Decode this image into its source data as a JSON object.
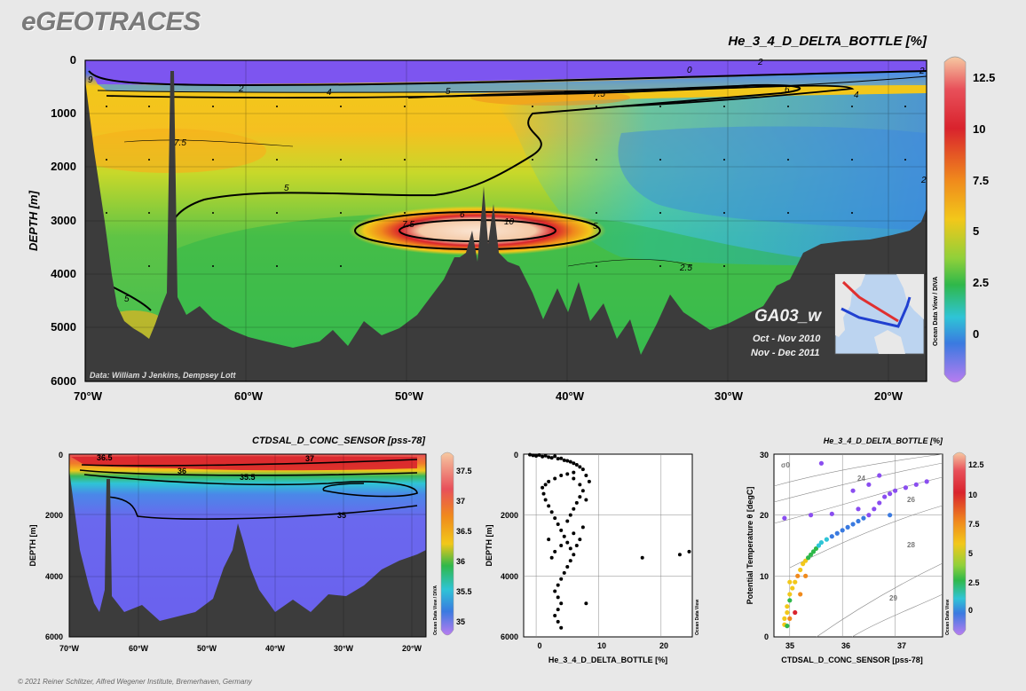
{
  "brand": "eGEOTRACES",
  "copyright": "© 2021 Reiner Schlitzer, Alfred Wegener Institute, Bremerhaven, Germany",
  "main_section": {
    "title": "He_3_4_D_DELTA_BOTTLE [%]",
    "ylabel": "DEPTH [m]",
    "y_ticks": [
      "0",
      "1000",
      "2000",
      "3000",
      "4000",
      "5000",
      "6000"
    ],
    "x_ticks": [
      "70°W",
      "60°W",
      "50°W",
      "40°W",
      "30°W",
      "20°W"
    ],
    "contour_labels": [
      "0",
      "2",
      "2",
      "2",
      "4",
      "4",
      "5",
      "6",
      "7.5",
      "7.5",
      "5",
      "6",
      "10",
      "7.5",
      "5",
      "2.5",
      "5",
      "9",
      "2"
    ],
    "credit": "Data: William J Jenkins, Dempsey Lott",
    "cruise": "GA03_w",
    "period1": "Oct - Nov 2010",
    "period2": "Nov - Dec 2011",
    "odv": "Ocean Data View / DIVA",
    "colorbar_ticks": [
      "12.5",
      "10",
      "7.5",
      "5",
      "2.5",
      "0"
    ],
    "colors": {
      "high": "#f4c9a6",
      "red": "#d9232d",
      "orange": "#f08a1c",
      "yellow": "#f2c81a",
      "green": "#2fb84a",
      "cyan": "#2fc4d6",
      "blue": "#3a7ae0",
      "violet": "#8a4df0",
      "seafloor": "#3c3c3c"
    }
  },
  "salinity_section": {
    "title": "CTDSAL_D_CONC_SENSOR [pss-78]",
    "ylabel": "DEPTH [m]",
    "y_ticks": [
      "0",
      "2000",
      "4000",
      "6000"
    ],
    "x_ticks": [
      "70°W",
      "60°W",
      "50°W",
      "40°W",
      "30°W",
      "20°W"
    ],
    "contour_labels": [
      "36.5",
      "36",
      "35.5",
      "35",
      "37"
    ],
    "odv": "Ocean Data View / DIVA",
    "colorbar_ticks": [
      "37.5",
      "37",
      "36.5",
      "36",
      "35.5",
      "35"
    ]
  },
  "chart_data": [
    {
      "type": "scatter",
      "title": "",
      "xlabel": "He_3_4_D_DELTA_BOTTLE [%]",
      "ylabel": "DEPTH [m]",
      "xlim": [
        -2,
        25
      ],
      "ylim": [
        6000,
        0
      ],
      "x_ticks": [
        "0",
        "10",
        "20"
      ],
      "y_ticks": [
        "0",
        "2000",
        "4000",
        "6000"
      ],
      "odv": "Ocean Data View",
      "points": [
        [
          -1,
          20
        ],
        [
          -0.5,
          40
        ],
        [
          0,
          60
        ],
        [
          0.5,
          30
        ],
        [
          1,
          80
        ],
        [
          1.5,
          50
        ],
        [
          2,
          100
        ],
        [
          2.5,
          120
        ],
        [
          3,
          70
        ],
        [
          3.5,
          150
        ],
        [
          4,
          140
        ],
        [
          4.5,
          200
        ],
        [
          5,
          220
        ],
        [
          5.5,
          250
        ],
        [
          6,
          300
        ],
        [
          6.5,
          350
        ],
        [
          7,
          420
        ],
        [
          7.5,
          500
        ],
        [
          6,
          600
        ],
        [
          5,
          650
        ],
        [
          4,
          700
        ],
        [
          3,
          800
        ],
        [
          2,
          900
        ],
        [
          1.5,
          1000
        ],
        [
          1,
          1100
        ],
        [
          1.2,
          1300
        ],
        [
          1.5,
          1500
        ],
        [
          2,
          1700
        ],
        [
          2.5,
          1900
        ],
        [
          3,
          2100
        ],
        [
          3.5,
          2300
        ],
        [
          4,
          2500
        ],
        [
          4.5,
          2700
        ],
        [
          5,
          2900
        ],
        [
          5.5,
          3100
        ],
        [
          6,
          3300
        ],
        [
          5.5,
          3500
        ],
        [
          5,
          3700
        ],
        [
          4.5,
          3900
        ],
        [
          4,
          4100
        ],
        [
          3.5,
          4300
        ],
        [
          3,
          4500
        ],
        [
          3.5,
          4700
        ],
        [
          4,
          4900
        ],
        [
          3.5,
          5100
        ],
        [
          3,
          5300
        ],
        [
          3.5,
          5500
        ],
        [
          4,
          5700
        ],
        [
          6,
          800
        ],
        [
          7,
          1000
        ],
        [
          7.5,
          1200
        ],
        [
          7,
          1400
        ],
        [
          6.5,
          1600
        ],
        [
          6,
          1800
        ],
        [
          5.5,
          2000
        ],
        [
          5,
          2200
        ],
        [
          6,
          2600
        ],
        [
          7,
          2800
        ],
        [
          8,
          700
        ],
        [
          8.5,
          900
        ],
        [
          8,
          1500
        ],
        [
          7.5,
          2400
        ],
        [
          6.5,
          3000
        ],
        [
          4,
          3000
        ],
        [
          3,
          3200
        ],
        [
          2.5,
          3400
        ],
        [
          2,
          2800
        ],
        [
          8,
          4900
        ],
        [
          17,
          3400
        ],
        [
          23,
          3300
        ],
        [
          24.5,
          3200
        ]
      ]
    },
    {
      "type": "scatter",
      "title": "He_3_4_D_DELTA_BOTTLE [%]",
      "xlabel": "CTDSAL_D_CONC_SENSOR [pss-78]",
      "ylabel": "Potential Temperature θ [degC]",
      "xlim": [
        34.7,
        37.9
      ],
      "ylim": [
        0,
        30
      ],
      "x_ticks": [
        "35",
        "36",
        "37"
      ],
      "y_ticks": [
        "0",
        "10",
        "20",
        "30"
      ],
      "isopycnal_labels": [
        "σ0",
        "24",
        "26",
        "28",
        "29"
      ],
      "odv": "Ocean Data View",
      "colorbar_ticks": [
        "12.5",
        "10",
        "7.5",
        "5",
        "2.5",
        "0"
      ],
      "points": [
        [
          34.9,
          2,
          5
        ],
        [
          34.9,
          3,
          6
        ],
        [
          34.95,
          4,
          5
        ],
        [
          34.95,
          5,
          6
        ],
        [
          35.0,
          6,
          4
        ],
        [
          35.0,
          7,
          5
        ],
        [
          35.05,
          8,
          6
        ],
        [
          35.1,
          9,
          7
        ],
        [
          35.15,
          10,
          8
        ],
        [
          35.2,
          11,
          7
        ],
        [
          35.25,
          12,
          6
        ],
        [
          35.3,
          12.5,
          5
        ],
        [
          35.35,
          13,
          4
        ],
        [
          35.4,
          13.5,
          3
        ],
        [
          35.45,
          14,
          3
        ],
        [
          35.5,
          14.5,
          3
        ],
        [
          35.55,
          15,
          2.5
        ],
        [
          35.6,
          15.5,
          2
        ],
        [
          35.7,
          16,
          1.5
        ],
        [
          35.8,
          16.5,
          1
        ],
        [
          35.9,
          17,
          0.5
        ],
        [
          36.0,
          17.5,
          0.3
        ],
        [
          36.1,
          18,
          0.2
        ],
        [
          36.2,
          18.5,
          0
        ],
        [
          36.3,
          19,
          0
        ],
        [
          36.4,
          19.5,
          0
        ],
        [
          36.5,
          20,
          -0.5
        ],
        [
          36.6,
          21,
          -0.5
        ],
        [
          36.7,
          22,
          -0.5
        ],
        [
          36.8,
          23,
          -1
        ],
        [
          36.9,
          23.5,
          -1
        ],
        [
          37.0,
          24,
          -1
        ],
        [
          37.2,
          24.5,
          -1
        ],
        [
          37.4,
          25,
          -1
        ],
        [
          37.6,
          25.5,
          -1
        ],
        [
          35.0,
          3,
          9
        ],
        [
          35.1,
          4,
          10
        ],
        [
          35.2,
          7,
          8
        ],
        [
          35.3,
          10,
          9
        ],
        [
          35.0,
          9,
          7
        ],
        [
          34.95,
          1.8,
          4
        ],
        [
          35.4,
          20,
          -1
        ],
        [
          35.8,
          20.2,
          -1
        ],
        [
          36.3,
          21,
          -1
        ],
        [
          36.2,
          24,
          -1
        ],
        [
          36.5,
          25,
          -0.5
        ],
        [
          36.7,
          26.5,
          -1
        ],
        [
          34.9,
          19.5,
          -1
        ],
        [
          35.6,
          28.5,
          -1
        ],
        [
          36.9,
          20,
          0
        ]
      ]
    }
  ]
}
